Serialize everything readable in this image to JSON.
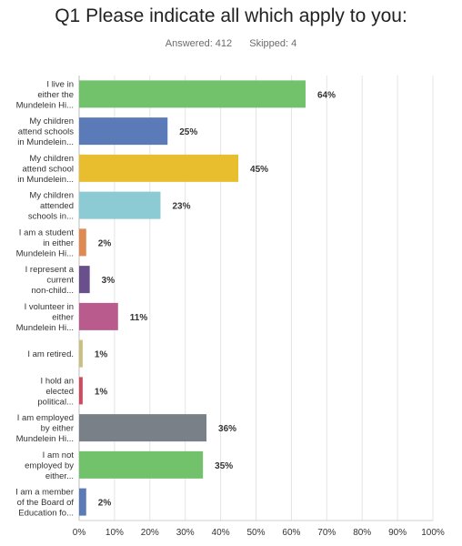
{
  "page": {
    "title": "Q1 Please indicate all which apply to you:",
    "answered_label": "Answered: 412",
    "skipped_label": "Skipped: 4"
  },
  "chart_data": {
    "type": "bar",
    "orientation": "horizontal",
    "categories": [
      [
        "I live in",
        "either the",
        "Mundelein Hi..."
      ],
      [
        "My children",
        "attend schools",
        "in Mundelein..."
      ],
      [
        "My children",
        "attend school",
        "in Mundelein..."
      ],
      [
        "My children",
        "attended",
        "schools in..."
      ],
      [
        "I am a student",
        "in either",
        "Mundelein Hi..."
      ],
      [
        "I represent a",
        "current",
        "non-child..."
      ],
      [
        "I volunteer in",
        "either",
        "Mundelein Hi..."
      ],
      [
        "I am retired."
      ],
      [
        "I hold an",
        "elected",
        "political..."
      ],
      [
        "I am employed",
        "by either",
        "Mundelein Hi..."
      ],
      [
        "I am not",
        "employed by",
        "either..."
      ],
      [
        "I am a member",
        "of the Board of",
        "Education fo..."
      ]
    ],
    "values": [
      64,
      25,
      45,
      23,
      2,
      3,
      11,
      1,
      1,
      36,
      35,
      2
    ],
    "value_labels": [
      "64%",
      "25%",
      "45%",
      "23%",
      "2%",
      "3%",
      "11%",
      "1%",
      "1%",
      "36%",
      "35%",
      "2%"
    ],
    "colors": [
      "#72c16b",
      "#5b7bb8",
      "#e8bd2e",
      "#8ccbd3",
      "#e08a52",
      "#6a4f8d",
      "#b95b8d",
      "#cbbf7f",
      "#d3485a",
      "#7a8087",
      "#72c16b",
      "#5b7bb8"
    ],
    "xlim": [
      0,
      100
    ],
    "xticks": [
      "0%",
      "10%",
      "20%",
      "30%",
      "40%",
      "50%",
      "60%",
      "70%",
      "80%",
      "90%",
      "100%"
    ],
    "grid": true
  }
}
